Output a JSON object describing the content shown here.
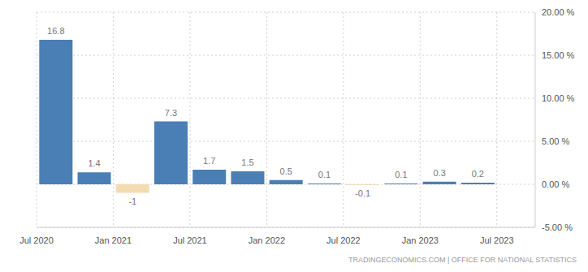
{
  "chart_data": {
    "type": "bar",
    "categories": [
      "Jul 2020",
      null,
      "Jan 2021",
      null,
      "Jul 2021",
      null,
      "Jan 2022",
      null,
      "Jul 2022",
      null,
      "Jan 2023",
      null,
      "Jul 2023"
    ],
    "values": [
      16.8,
      1.4,
      -1,
      7.3,
      1.7,
      1.5,
      0.5,
      0.1,
      -0.1,
      0.1,
      0.3,
      0.2,
      null
    ],
    "colors": [
      "#4a7fb5",
      "#4a7fb5",
      "#f3dcb2",
      "#4a7fb5",
      "#4a7fb5",
      "#4a7fb5",
      "#4a7fb5",
      "#4a7fb5",
      "#f3dcb2",
      "#4a7fb5",
      "#4a7fb5",
      "#4a7fb5",
      "#4a7fb5"
    ],
    "ylim": [
      -5,
      20
    ],
    "yticks": [
      {
        "value": -5,
        "label": "-5.00 %"
      },
      {
        "value": 0,
        "label": "0.00 %"
      },
      {
        "value": 5,
        "label": "5.00 %"
      },
      {
        "value": 10,
        "label": "10.00 %"
      },
      {
        "value": 15,
        "label": "15.00 %"
      },
      {
        "value": 20,
        "label": "20.00 %"
      }
    ],
    "grid": true,
    "data_labels": true,
    "source": "TRADINGECONOMICS.COM | OFFICE FOR NATIONAL STATISTICS"
  }
}
